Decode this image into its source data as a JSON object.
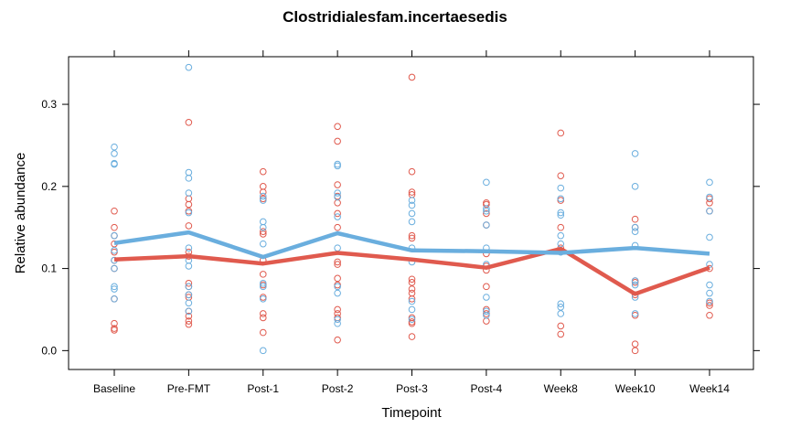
{
  "chart_data": {
    "type": "scatter",
    "title": "Clostridialesfam.incertaesedis",
    "xlabel": "Timepoint",
    "ylabel": "Relative abundance",
    "categories": [
      "Baseline",
      "Pre-FMT",
      "Post-1",
      "Post-2",
      "Post-3",
      "Post-4",
      "Week8",
      "Week10",
      "Week14"
    ],
    "ylim": [
      -0.023,
      0.358
    ],
    "yticks": [
      0.0,
      0.1,
      0.2,
      0.3
    ],
    "ytick_labels": [
      "0.0",
      "0.1",
      "0.2",
      "0.3"
    ],
    "grid": false,
    "series": [
      {
        "color": "#e05a4e",
        "points": [
          [
            0.11,
            0.12,
            0.15,
            0.17,
            0.14,
            0.13,
            0.1,
            0.063,
            0.033,
            0.027,
            0.025
          ],
          [
            0.278,
            0.185,
            0.178,
            0.17,
            0.152,
            0.12,
            0.115,
            0.082,
            0.078,
            0.068,
            0.065,
            0.048,
            0.042,
            0.036,
            0.032
          ],
          [
            0.218,
            0.2,
            0.193,
            0.185,
            0.145,
            0.142,
            0.11,
            0.093,
            0.08,
            0.065,
            0.045,
            0.04,
            0.022
          ],
          [
            0.273,
            0.255,
            0.202,
            0.188,
            0.18,
            0.167,
            0.15,
            0.108,
            0.105,
            0.088,
            0.08,
            0.05,
            0.045,
            0.04,
            0.013
          ],
          [
            0.333,
            0.218,
            0.193,
            0.19,
            0.14,
            0.137,
            0.087,
            0.083,
            0.075,
            0.07,
            0.063,
            0.04,
            0.035,
            0.033,
            0.017
          ],
          [
            0.18,
            0.178,
            0.167,
            0.153,
            0.118,
            0.103,
            0.098,
            0.078,
            0.05,
            0.045,
            0.036
          ],
          [
            0.265,
            0.213,
            0.183,
            0.15,
            0.125,
            0.03,
            0.02
          ],
          [
            0.16,
            0.15,
            0.085,
            0.083,
            0.068,
            0.043,
            0.008,
            0.0
          ],
          [
            0.185,
            0.18,
            0.17,
            0.1,
            0.058,
            0.055,
            0.043
          ]
        ],
        "line": [
          0.111,
          0.115,
          0.106,
          0.119,
          0.111,
          0.101,
          0.124,
          0.069,
          0.101
        ]
      },
      {
        "color": "#6aaede",
        "points": [
          [
            0.248,
            0.24,
            0.228,
            0.227,
            0.14,
            0.122,
            0.11,
            0.1,
            0.078,
            0.075,
            0.063
          ],
          [
            0.345,
            0.217,
            0.21,
            0.192,
            0.168,
            0.125,
            0.11,
            0.103,
            0.078,
            0.068,
            0.058,
            0.048
          ],
          [
            0.188,
            0.183,
            0.157,
            0.15,
            0.13,
            0.082,
            0.078,
            0.063,
            0.0
          ],
          [
            0.227,
            0.225,
            0.192,
            0.187,
            0.163,
            0.125,
            0.078,
            0.07,
            0.038,
            0.033
          ],
          [
            0.183,
            0.177,
            0.167,
            0.157,
            0.125,
            0.108,
            0.06,
            0.05,
            0.038
          ],
          [
            0.205,
            0.173,
            0.17,
            0.153,
            0.125,
            0.105,
            0.065,
            0.048,
            0.043
          ],
          [
            0.198,
            0.185,
            0.168,
            0.165,
            0.14,
            0.13,
            0.12,
            0.057,
            0.053,
            0.045
          ],
          [
            0.24,
            0.2,
            0.15,
            0.145,
            0.128,
            0.085,
            0.08,
            0.065,
            0.045
          ],
          [
            0.205,
            0.187,
            0.17,
            0.138,
            0.105,
            0.08,
            0.07,
            0.06
          ]
        ],
        "line": [
          0.131,
          0.144,
          0.114,
          0.143,
          0.122,
          0.121,
          0.119,
          0.125,
          0.118
        ]
      }
    ]
  }
}
